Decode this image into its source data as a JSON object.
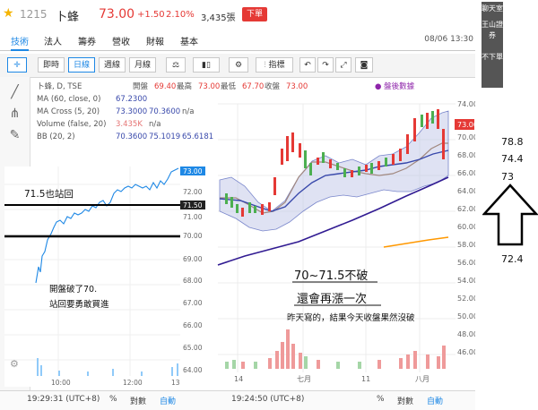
{
  "header": {
    "stock_code": "1215",
    "stock_name": "卜蜂",
    "price": "73.00",
    "change": "+1.50",
    "change_pct": "2.10%",
    "volume": "3,435張",
    "order_button": "下單",
    "datetime": "08/06 13:30"
  },
  "tabs": [
    "技術",
    "法人",
    "籌券",
    "營收",
    "財報",
    "基本"
  ],
  "toolbar": {
    "buttons": [
      "即時",
      "日線",
      "週線",
      "月線"
    ],
    "active": "日線",
    "indicator_label": "指標"
  },
  "legend": {
    "title": "卜蜂, D, TSE",
    "open_label": "開盤",
    "open": "69.40",
    "high_label": "最高",
    "high": "73.00",
    "low_label": "最低",
    "low": "67.70",
    "close_label": "收盤",
    "close": "73.00",
    "ma60_label": "MA (60, close, 0)",
    "ma60": "67.2300",
    "macross_label": "MA Cross (5, 20)",
    "macross_1": "73.3000",
    "macross_2": "70.3600",
    "macross_3": "n/a",
    "vol_label": "Volume (false, 20)",
    "vol": "3.435K",
    "vol_na": "n/a",
    "bb_label": "BB (20, 2)",
    "bb_1": "70.3600",
    "bb_2": "75.1019",
    "bb_3": "65.6181",
    "signal": "● 盤後數據"
  },
  "intraday": {
    "last_price_tag": "73.00",
    "line_price_tag": "71.50",
    "axis_ticks": [
      "72.00",
      "71.00",
      "70.00",
      "69.00",
      "68.00",
      "67.00",
      "66.00",
      "65.00",
      "64.00"
    ],
    "x_ticks": [
      "10:00",
      "12:00",
      "13"
    ],
    "time": "19:29:31 (UTC+8)",
    "mode_pct": "%",
    "mode_log": "對數",
    "mode_auto": "自動"
  },
  "daily": {
    "last_price_tag": "73.00",
    "axis_ticks": [
      "74.00",
      "72.00",
      "70.00",
      "68.00",
      "66.00",
      "64.00",
      "62.00",
      "60.00",
      "58.00",
      "56.00",
      "54.00",
      "52.00",
      "50.00",
      "48.00",
      "46.00"
    ],
    "x_ticks": [
      "14",
      "七月",
      "11",
      "八月"
    ],
    "time": "19:24:50 (UTC+8)",
    "mode_pct": "%",
    "mode_log": "對數",
    "mode_auto": "自動"
  },
  "annotations": {
    "back_above": "71.5也站回",
    "open_break": "開盤破了70.",
    "buy_advice": "站回要勇敢買進",
    "range": "70~71.5不破",
    "rise_again": "還會再漲一次",
    "yesterday": "昨天寫的，結果今天收盤果然沒破"
  },
  "banner_lines": [
    "聊天室",
    "王山證券",
    "不下單"
  ],
  "side_numbers": [
    "78.8",
    "74.4",
    "73",
    "72.4"
  ]
}
